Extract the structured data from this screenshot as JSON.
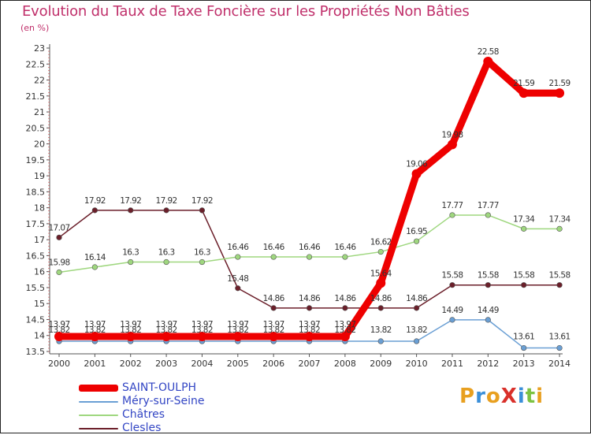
{
  "title": "Evolution du Taux de Taxe Foncière sur les Propriétés Non Bâties",
  "unit_label": "(en %)",
  "logo": {
    "text": "ProXiti",
    "letters": [
      "P",
      "r",
      "o",
      "X",
      "i",
      "t",
      "i"
    ],
    "colors": [
      "#e8a020",
      "#3a8fd9",
      "#e8a020",
      "#d9302a",
      "#3a8fd9",
      "#7cc242",
      "#e8a020"
    ]
  },
  "chart_data": {
    "type": "line",
    "title": "Evolution du Taux de Taxe Foncière sur les Propriétés Non Bâties",
    "ylabel": "(en %)",
    "ylim": [
      13.5,
      23
    ],
    "y_ticks": [
      "13.5",
      "14",
      "14.5",
      "15",
      "15.5",
      "16",
      "16.5",
      "17",
      "17.5",
      "18",
      "18.5",
      "19",
      "19.5",
      "20",
      "20.5",
      "21",
      "21.5",
      "22",
      "22.5",
      "23"
    ],
    "categories": [
      "2000",
      "2001",
      "2002",
      "2003",
      "2004",
      "2005",
      "2006",
      "2007",
      "2008",
      "2009",
      "2010",
      "2011",
      "2012",
      "2013",
      "2014"
    ],
    "series": [
      {
        "name": "SAINT-OULPH",
        "color": "#ee0000",
        "width": 9,
        "values": [
          13.97,
          13.97,
          13.97,
          13.97,
          13.97,
          13.97,
          13.97,
          13.97,
          13.97,
          15.64,
          19.06,
          19.98,
          22.58,
          21.59,
          21.59
        ],
        "labels": [
          "13.97",
          "13.97",
          "13.97",
          "13.97",
          "13.97",
          "13.97",
          "13.97",
          "13.97",
          "13.97",
          "15.64",
          "19.06",
          "19.98",
          "22.58",
          "21.59",
          "21.59"
        ]
      },
      {
        "name": "Méry-sur-Seine",
        "color": "#6a9fd4",
        "width": 1.5,
        "values": [
          13.82,
          13.82,
          13.82,
          13.82,
          13.82,
          13.82,
          13.82,
          13.82,
          13.82,
          13.82,
          13.82,
          14.49,
          14.49,
          13.61,
          13.61
        ],
        "labels": [
          "13.82",
          "13.82",
          "13.82",
          "13.82",
          "13.82",
          "13.82",
          "13.82",
          "13.82",
          "13.82",
          "13.82",
          "13.82",
          "14.49",
          "14.49",
          "13.61",
          "13.61"
        ]
      },
      {
        "name": "Châtres",
        "color": "#9fd77f",
        "width": 1.5,
        "values": [
          15.98,
          16.14,
          16.3,
          16.3,
          16.3,
          16.46,
          16.46,
          16.46,
          16.46,
          16.62,
          16.95,
          17.77,
          17.77,
          17.34,
          17.34
        ],
        "labels": [
          "15.98",
          "16.14",
          "16.3",
          "16.3",
          "16.3",
          "16.46",
          "16.46",
          "16.46",
          "16.46",
          "16.62",
          "16.95",
          "17.77",
          "17.77",
          "17.34",
          "17.34"
        ]
      },
      {
        "name": "Clesles",
        "color": "#6b1f2a",
        "width": 1.5,
        "values": [
          17.07,
          17.92,
          17.92,
          17.92,
          17.92,
          15.48,
          14.86,
          14.86,
          14.86,
          14.86,
          14.86,
          15.58,
          15.58,
          15.58,
          15.58
        ],
        "labels": [
          "17.07",
          "17.92",
          "17.92",
          "17.92",
          "17.92",
          "15.48",
          "14.86",
          "14.86",
          "14.86",
          "14.86",
          "14.86",
          "15.58",
          "15.58",
          "15.58",
          "15.58"
        ]
      }
    ],
    "legend": [
      "SAINT-OULPH",
      "Méry-sur-Seine",
      "Châtres",
      "Clesles"
    ],
    "grid": false
  }
}
